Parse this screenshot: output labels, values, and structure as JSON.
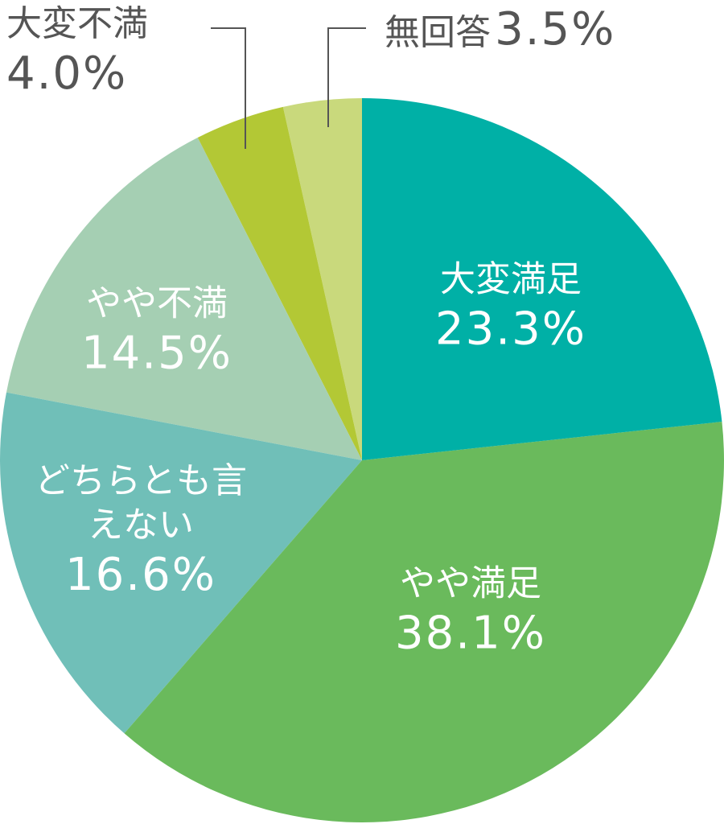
{
  "chart_data": {
    "type": "pie",
    "categories": [
      "大変満足",
      "やや満足",
      "どちらとも言えない",
      "やや不満",
      "大変不満",
      "無回答"
    ],
    "values": [
      23.3,
      38.1,
      16.6,
      14.5,
      4.0,
      3.5
    ],
    "value_labels": [
      "23.3%",
      "38.1%",
      "16.6%",
      "14.5%",
      "4.0%",
      "3.5%"
    ],
    "colors": [
      "#00b0a6",
      "#6aba5c",
      "#70bfb8",
      "#a5cfb3",
      "#b3c835",
      "#c9d97c"
    ]
  }
}
